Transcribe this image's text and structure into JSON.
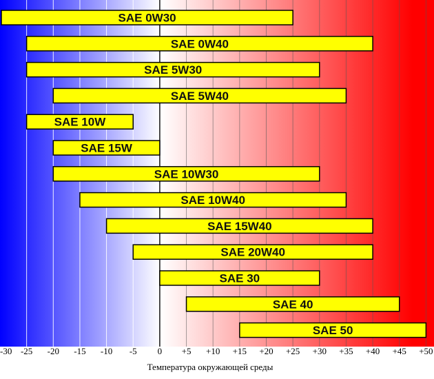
{
  "chart_data": {
    "type": "bar",
    "orientation": "horizontal-range",
    "xlabel": "Температура окружающей среды",
    "xlim": [
      -30,
      51.5
    ],
    "ticks": [
      -30,
      -25,
      -20,
      -15,
      -10,
      -5,
      0,
      5,
      10,
      15,
      20,
      25,
      30,
      35,
      40,
      45,
      50
    ],
    "tick_labels": [
      "-30",
      "-25",
      "-20",
      "-15",
      "-10",
      "-5",
      "0",
      "+5",
      "+10",
      "+15",
      "+20",
      "+25",
      "+30",
      "+35",
      "+40",
      "+45",
      "+50"
    ],
    "grid": true,
    "background": "gradient blue (cold) to red (hot)",
    "colors": {
      "bar_fill": "#ffff00",
      "bar_stroke": "#000000",
      "cold": "#0000ff",
      "hot": "#ff0000"
    },
    "bars": [
      {
        "label": "SAE 0W30",
        "from": -30,
        "to": 25
      },
      {
        "label": "SAE 0W40",
        "from": -25,
        "to": 40
      },
      {
        "label": "SAE 5W30",
        "from": -25,
        "to": 30
      },
      {
        "label": "SAE 5W40",
        "from": -20,
        "to": 35
      },
      {
        "label": "SAE 10W",
        "from": -25,
        "to": -5
      },
      {
        "label": "SAE 15W",
        "from": -20,
        "to": 0
      },
      {
        "label": "SAE 10W30",
        "from": -20,
        "to": 30
      },
      {
        "label": "SAE 10W40",
        "from": -15,
        "to": 35
      },
      {
        "label": "SAE 15W40",
        "from": -10,
        "to": 40
      },
      {
        "label": "SAE 20W40",
        "from": -5,
        "to": 40
      },
      {
        "label": "SAE 30",
        "from": 0,
        "to": 30
      },
      {
        "label": "SAE 40",
        "from": 5,
        "to": 45
      },
      {
        "label": "SAE 50",
        "from": 15,
        "to": 50
      }
    ]
  }
}
